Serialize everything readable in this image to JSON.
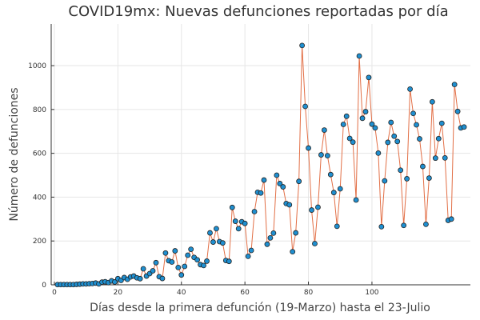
{
  "chart_data": {
    "type": "line",
    "title": "COVID19mx: Nuevas defunciones reportadas por día",
    "xlabel": "Días desde la primera defunción (19-Marzo) hasta el 23-Julio",
    "ylabel": "Número de defunciones",
    "xlim": [
      -1,
      131
    ],
    "ylim": [
      0,
      1190
    ],
    "xticks": [
      0,
      20,
      40,
      60,
      80,
      100
    ],
    "yticks": [
      0,
      200,
      400,
      600,
      800,
      1000
    ],
    "grid": true,
    "legend": "none",
    "line_color": "#e26f46",
    "marker_color": "#1f8fd0",
    "marker_edge": "#222222",
    "series": [
      {
        "x": [
          1,
          2,
          3,
          4,
          5,
          6,
          7,
          8,
          9,
          10,
          11,
          12,
          13,
          14,
          15,
          16,
          17,
          18,
          19,
          20,
          21,
          22,
          23,
          24,
          25,
          26,
          27,
          28,
          29,
          30,
          31,
          32,
          33,
          34,
          35,
          36,
          37,
          38,
          39,
          40,
          41,
          42,
          43,
          44,
          45,
          46,
          47,
          48,
          49,
          50,
          51,
          52,
          53,
          54,
          55,
          56,
          57,
          58,
          59,
          60,
          61,
          62,
          63,
          64,
          65,
          66,
          67,
          68,
          69,
          70,
          71,
          72,
          73,
          74,
          75,
          76,
          77,
          78,
          79,
          80,
          81,
          82,
          83,
          84,
          85,
          86,
          87,
          88,
          89,
          90,
          91,
          92,
          93,
          94,
          95,
          96,
          97,
          98,
          99,
          100,
          101,
          102,
          103,
          104,
          105,
          106,
          107,
          108,
          109,
          110,
          111,
          112,
          113,
          114,
          115,
          116,
          117,
          118,
          119,
          120,
          121,
          122,
          123,
          124,
          125,
          126,
          127,
          128,
          129
        ],
        "values": [
          1,
          1,
          1,
          1,
          1,
          1,
          2,
          3,
          4,
          4,
          5,
          6,
          8,
          4,
          12,
          14,
          10,
          18,
          13,
          28,
          20,
          33,
          25,
          36,
          40,
          32,
          28,
          73,
          40,
          51,
          64,
          101,
          37,
          29,
          145,
          110,
          104,
          155,
          79,
          45,
          84,
          135,
          162,
          125,
          114,
          92,
          88,
          108,
          237,
          195,
          256,
          197,
          191,
          111,
          107,
          353,
          290,
          256,
          288,
          280,
          130,
          157,
          334,
          422,
          419,
          478,
          185,
          214,
          236,
          500,
          462,
          447,
          371,
          365,
          151,
          237,
          472,
          1092,
          814,
          624,
          341,
          188,
          354,
          593,
          706,
          589,
          503,
          421,
          267,
          438,
          732,
          769,
          668,
          651,
          387,
          1044,
          760,
          790,
          946,
          733,
          716,
          601,
          265,
          474,
          650,
          741,
          678,
          654,
          523,
          271,
          484,
          893,
          782,
          730,
          666,
          540,
          276,
          487,
          835,
          578,
          667,
          737,
          579,
          294,
          300,
          914,
          791,
          716,
          720
        ]
      }
    ]
  }
}
